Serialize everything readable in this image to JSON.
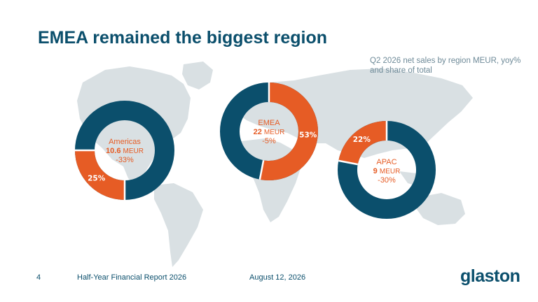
{
  "slide": {
    "title": "EMEA remained the biggest region",
    "subtitle": "Q2 2026 net sales by region MEUR, yoy% and share of total"
  },
  "colors": {
    "primary": "#0b4f6c",
    "accent": "#e65c25",
    "map": "#d9e0e3",
    "subtitle": "#6e8a98"
  },
  "chart_data": [
    {
      "type": "pie",
      "region": "Americas",
      "value": 10.6,
      "unit": "MEUR",
      "yoy": "-33%",
      "share": 25,
      "share_label": "25%"
    },
    {
      "type": "pie",
      "region": "EMEA",
      "value": 22,
      "unit": "MEUR",
      "yoy": "-5%",
      "share": 53,
      "share_label": "53%"
    },
    {
      "type": "pie",
      "region": "APAC",
      "value": 9,
      "unit": "MEUR",
      "yoy": "-30%",
      "share": 22,
      "share_label": "22%"
    }
  ],
  "footer": {
    "page_number": "4",
    "report_name": "Half-Year Financial Report 2026",
    "date": "August 12, 2026"
  },
  "logo": {
    "text": "glaston"
  }
}
